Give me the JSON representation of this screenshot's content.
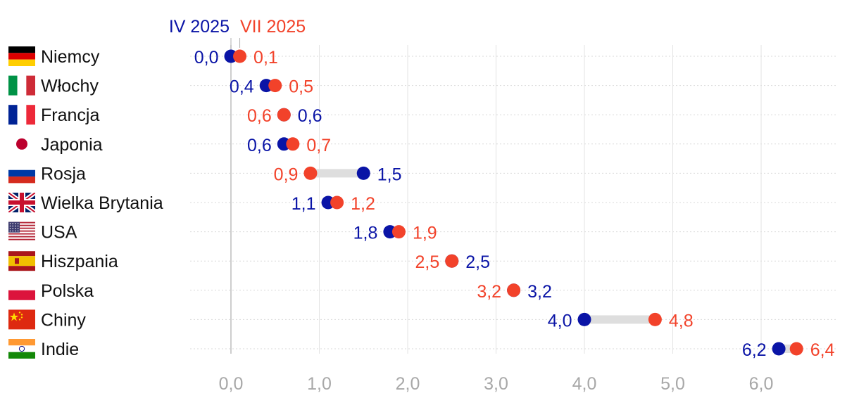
{
  "chart_data": {
    "type": "dumbbell",
    "title": "",
    "xlabel": "",
    "ylabel": "",
    "xlim": [
      -0.5,
      6.8
    ],
    "x_ticks": [
      "0,0",
      "1,0",
      "2,0",
      "3,0",
      "4,0",
      "5,0",
      "6,0"
    ],
    "x_tick_values": [
      0,
      1,
      2,
      3,
      4,
      5,
      6
    ],
    "legend": [
      {
        "name": "IV 2025",
        "color": "#0a14a6"
      },
      {
        "name": "VII 2025",
        "color": "#f2422a"
      }
    ],
    "categories": [
      "Niemcy",
      "Włochy",
      "Francja",
      "Japonia",
      "Rosja",
      "Wielka Brytania",
      "USA",
      "Hiszpania",
      "Polska",
      "Chiny",
      "Indie"
    ],
    "flag_icons": [
      "germany-flag-icon",
      "italy-flag-icon",
      "france-flag-icon",
      "japan-flag-icon",
      "russia-flag-icon",
      "uk-flag-icon",
      "usa-flag-icon",
      "spain-flag-icon",
      "poland-flag-icon",
      "china-flag-icon",
      "india-flag-icon"
    ],
    "series": [
      {
        "name": "IV 2025",
        "color": "#0a14a6",
        "values": [
          0.0,
          0.4,
          0.6,
          0.6,
          1.5,
          1.1,
          1.8,
          2.5,
          3.2,
          4.0,
          6.2
        ],
        "labels": [
          "0,0",
          "0,4",
          "0,6",
          "0,6",
          "1,5",
          "1,1",
          "1,8",
          "2,5",
          "3,2",
          "4,0",
          "6,2"
        ]
      },
      {
        "name": "VII 2025",
        "color": "#f2422a",
        "values": [
          0.1,
          0.5,
          0.6,
          0.7,
          0.9,
          1.2,
          1.9,
          2.5,
          3.2,
          4.8,
          6.4
        ],
        "labels": [
          "0,1",
          "0,5",
          "0,6",
          "0,7",
          "0,9",
          "1,2",
          "1,9",
          "2,5",
          "3,2",
          "4,8",
          "6,4"
        ]
      }
    ]
  }
}
